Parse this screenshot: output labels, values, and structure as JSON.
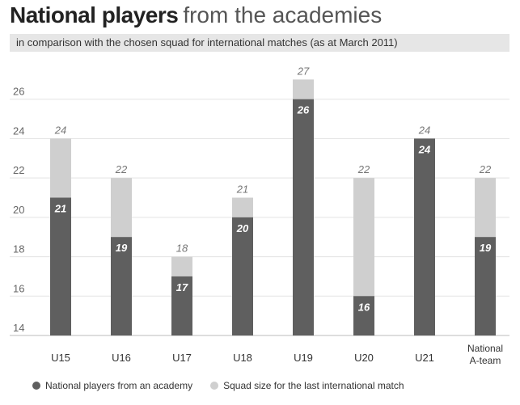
{
  "title_bold": "National players",
  "title_light": "from the academies",
  "subtitle": "in comparison with the chosen squad for international matches (as at March 2011)",
  "colors": {
    "academy": "#5f5f5f",
    "squad": "#cfcfcf",
    "grid": "#e3e3e3"
  },
  "legend": {
    "academy": "National players from an academy",
    "squad": "Squad size for the last international match"
  },
  "chart_data": {
    "type": "bar",
    "categories": [
      "U15",
      "U16",
      "U17",
      "U18",
      "U19",
      "U20",
      "U21",
      "National A-team"
    ],
    "series": [
      {
        "name": "National players from an academy",
        "values": [
          21,
          19,
          17,
          20,
          26,
          16,
          24,
          19
        ]
      },
      {
        "name": "Squad size for the last international match",
        "values": [
          24,
          22,
          18,
          21,
          27,
          22,
          24,
          22
        ]
      }
    ],
    "yticks": [
      14,
      16,
      18,
      20,
      22,
      24,
      26
    ],
    "ylim": [
      14,
      28
    ],
    "grid": true,
    "legend_position": "bottom"
  }
}
